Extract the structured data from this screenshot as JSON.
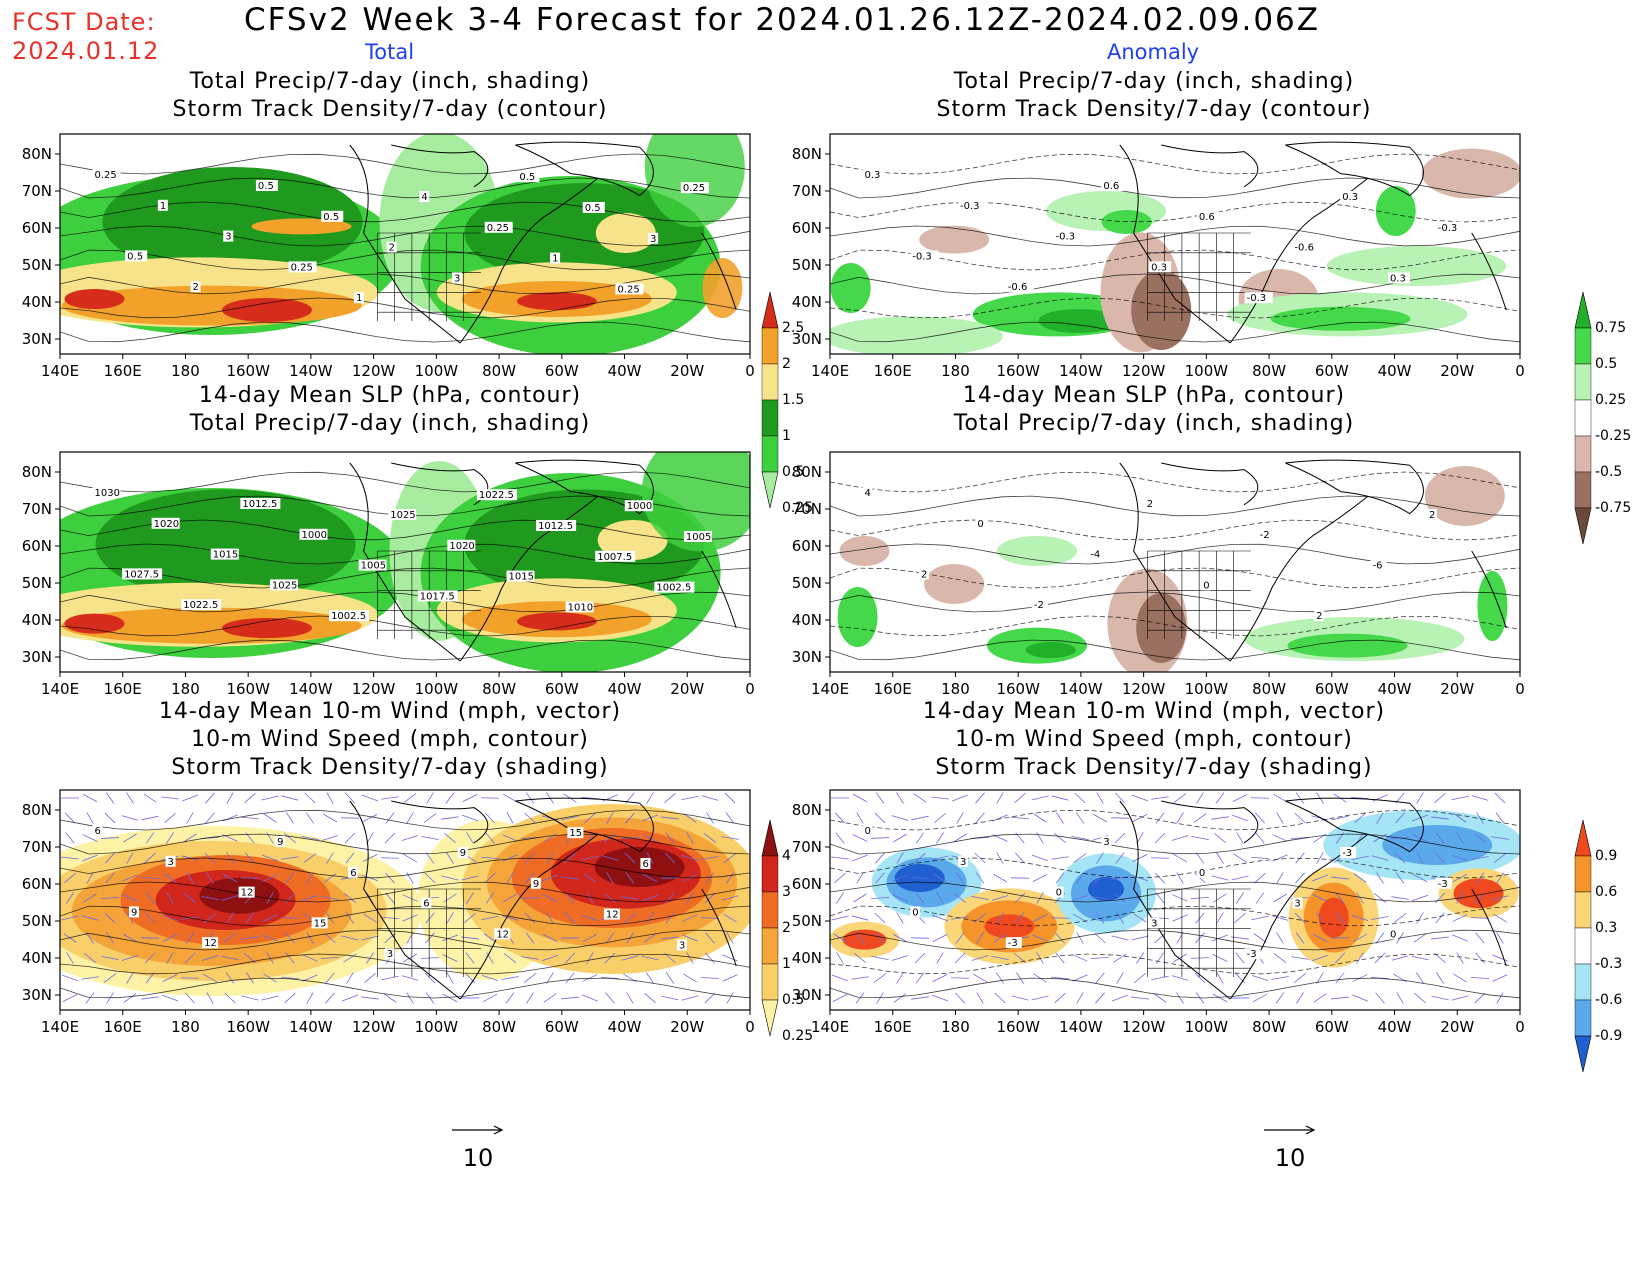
{
  "header": {
    "fcst_date_label": "FCST Date:",
    "fcst_date_value": "2024.01.12",
    "title": "CFSv2 Week 3-4 Forecast for 2024.01.26.12Z-2024.02.09.06Z",
    "col_total": "Total",
    "col_anomaly": "Anomaly"
  },
  "axes": {
    "lat_labels": [
      "80N",
      "70N",
      "60N",
      "50N",
      "40N",
      "30N"
    ],
    "lon_labels": [
      "140E",
      "160E",
      "180",
      "160W",
      "140W",
      "120W",
      "100W",
      "80W",
      "60W",
      "40W",
      "20W",
      "0"
    ]
  },
  "panels": {
    "r1": {
      "line1": "Total Precip/7-day (inch, shading)",
      "line2": "Storm Track Density/7-day (contour)"
    },
    "r2": {
      "line1": "14-day Mean SLP (hPa, contour)",
      "line2": "Total Precip/7-day (inch, shading)"
    },
    "r3": {
      "line1": "14-day Mean 10-m Wind (mph, vector)",
      "line2": "10-m Wind Speed (mph, contour)",
      "line3": "Storm Track Density/7-day (shading)"
    }
  },
  "colorbars": {
    "precip_total": {
      "labels": [
        "2.5",
        "2",
        "1.5",
        "1",
        "0.5",
        "0.25"
      ],
      "colors": [
        "#d62c1c",
        "#f2a12b",
        "#f7e38a",
        "#1f9a1f",
        "#3ecf3e",
        "#a8eca0"
      ]
    },
    "precip_anom": {
      "labels": [
        "0.75",
        "0.5",
        "0.25",
        "-0.25",
        "-0.5",
        "-0.75"
      ],
      "colors": [
        "#22b02a",
        "#44d84a",
        "#b8f2b4",
        "#ffffff",
        "#d9b7ab",
        "#9a7060",
        "#6b4a3c"
      ]
    },
    "storm_total": {
      "labels": [
        "4",
        "3",
        "2",
        "1",
        "0.5",
        "0.25"
      ],
      "colors": [
        "#8e1010",
        "#d1261b",
        "#ef6c24",
        "#f5a43a",
        "#f9cf6a",
        "#fdf2a6"
      ]
    },
    "storm_anom": {
      "labels": [
        "0.9",
        "0.6",
        "0.3",
        "-0.3",
        "-0.6",
        "-0.9"
      ],
      "colors": [
        "#ef4a1f",
        "#f5942b",
        "#f9d779",
        "#ffffff",
        "#a6e5f5",
        "#5aa9ea",
        "#1f5fd0"
      ]
    }
  },
  "map_labels": {
    "p_r1_total": [
      "0.25",
      "0.5",
      "1",
      "2",
      "3",
      "0.5",
      "0.25",
      "0.5",
      "1",
      "2",
      "4",
      "3",
      "0.25",
      "0.5",
      "1",
      "0.5",
      "0.25",
      "3",
      "0.25"
    ],
    "p_r1_anom": [
      "0.3",
      "-0.3",
      "-0.3",
      "-0.6",
      "-0.3",
      "0.6",
      "0.3",
      "0.6",
      "-0.3",
      "-0.6",
      "0.3",
      "0.3",
      "-0.3"
    ],
    "p_r2_total": [
      "1030",
      "1027.5",
      "1020",
      "1022.5",
      "1015",
      "1012.5",
      "1025",
      "1000",
      "1002.5",
      "1005",
      "1025",
      "1017.5",
      "1020",
      "1022.5",
      "1015",
      "1012.5",
      "1010",
      "1007.5",
      "1000",
      "1002.5",
      "1005"
    ],
    "p_r2_anom": [
      "4",
      "2",
      "0",
      "-2",
      "-4",
      "2",
      "0",
      "-2",
      "2",
      "-6",
      "2"
    ],
    "p_r3_total": [
      "6",
      "9",
      "3",
      "12",
      "12",
      "9",
      "15",
      "6",
      "3",
      "6",
      "9",
      "12",
      "9",
      "15",
      "12",
      "6",
      "3"
    ],
    "p_r3_anom": [
      "0",
      "0",
      "3",
      "-3",
      "0",
      "3",
      "3",
      "0",
      "-3",
      "3",
      "-3",
      "0",
      "-3"
    ]
  },
  "reference_vector": {
    "label": "10"
  }
}
